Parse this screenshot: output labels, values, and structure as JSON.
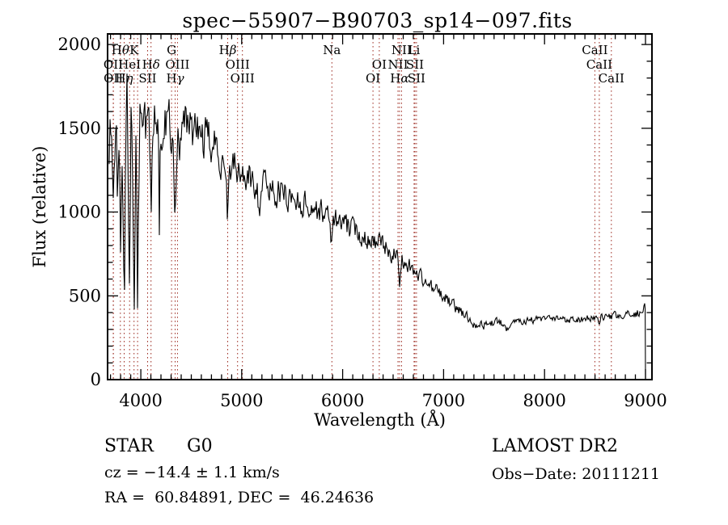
{
  "title": "spec−55907−B90703_sp14−097.fits",
  "chart_data": {
    "type": "line",
    "title": "spec−55907−B90703_sp14−097.fits",
    "xlabel": "Wavelength (Å)",
    "ylabel": "Flux (relative)",
    "xlim": [
      3671,
      9064
    ],
    "ylim": [
      0,
      2063
    ],
    "x_major_ticks": [
      4000,
      5000,
      6000,
      7000,
      8000,
      9000
    ],
    "x_minor_step": 100,
    "y_major_ticks": [
      0,
      500,
      1000,
      1500,
      2000
    ],
    "y_minor_step": 100,
    "grid": false,
    "line_color": "#000000",
    "marker_line_color": "#a03228",
    "wavelength_range": [
      3687,
      9000
    ],
    "noise_seed": 1337,
    "continuum_points": [
      [
        3690,
        1450
      ],
      [
        3760,
        1520
      ],
      [
        3830,
        1600
      ],
      [
        3900,
        1690
      ],
      [
        3950,
        1640
      ],
      [
        4000,
        1560
      ],
      [
        4100,
        1520
      ],
      [
        4250,
        1545
      ],
      [
        4400,
        1515
      ],
      [
        4550,
        1475
      ],
      [
        4700,
        1405
      ],
      [
        4850,
        1305
      ],
      [
        5000,
        1215
      ],
      [
        5200,
        1165
      ],
      [
        5400,
        1115
      ],
      [
        5600,
        1055
      ],
      [
        5800,
        995
      ],
      [
        6000,
        925
      ],
      [
        6200,
        865
      ],
      [
        6300,
        835
      ],
      [
        6450,
        775
      ],
      [
        6600,
        715
      ],
      [
        6700,
        655
      ],
      [
        6800,
        595
      ],
      [
        6900,
        540
      ],
      [
        7000,
        495
      ],
      [
        7100,
        440
      ],
      [
        7200,
        390
      ],
      [
        7300,
        340
      ],
      [
        7400,
        325
      ],
      [
        7500,
        342
      ],
      [
        7650,
        352
      ],
      [
        7800,
        356
      ],
      [
        8000,
        358
      ],
      [
        8300,
        362
      ],
      [
        8600,
        370
      ],
      [
        8800,
        378
      ],
      [
        8920,
        395
      ],
      [
        8970,
        432
      ],
      [
        9000,
        425
      ]
    ],
    "noise_amplitude_points": [
      [
        3690,
        260
      ],
      [
        3860,
        290
      ],
      [
        3960,
        240
      ],
      [
        4100,
        165
      ],
      [
        4300,
        145
      ],
      [
        4600,
        120
      ],
      [
        5000,
        95
      ],
      [
        5400,
        82
      ],
      [
        5800,
        70
      ],
      [
        6100,
        62
      ],
      [
        6400,
        55
      ],
      [
        6700,
        46
      ],
      [
        7000,
        38
      ],
      [
        7200,
        28
      ],
      [
        7500,
        22
      ],
      [
        8000,
        20
      ],
      [
        8500,
        21
      ],
      [
        9000,
        26
      ]
    ],
    "absorption_lines": [
      [
        3727,
        500,
        7
      ],
      [
        3770,
        330,
        6
      ],
      [
        3798,
        640,
        7
      ],
      [
        3835,
        880,
        7
      ],
      [
        3889,
        980,
        8
      ],
      [
        3933,
        1090,
        9
      ],
      [
        3969,
        1000,
        9
      ],
      [
        4101,
        500,
        9
      ],
      [
        4340,
        420,
        9
      ],
      [
        4383,
        160,
        6
      ],
      [
        4861,
        300,
        9
      ],
      [
        5172,
        110,
        12
      ],
      [
        5893,
        140,
        9
      ],
      [
        6563,
        230,
        8
      ],
      [
        7615,
        55,
        24
      ],
      [
        8542,
        55,
        8
      ]
    ],
    "spectral_line_markers": [
      3727,
      3729,
      3798,
      3835,
      3889,
      3933,
      3968,
      4068,
      4101,
      4305,
      4340,
      4363,
      4861,
      4959,
      5007,
      5893,
      6300,
      6363,
      6548,
      6563,
      6583,
      6707,
      6716,
      6731,
      8498,
      8542,
      8662
    ],
    "spectral_line_labels": [
      {
        "row": 1,
        "text": "Hθ",
        "wavelength": 3798
      },
      {
        "row": 1,
        "text": "K",
        "wavelength": 3933
      },
      {
        "row": 1,
        "text": "G",
        "wavelength": 4305
      },
      {
        "row": 1,
        "text": "Hβ",
        "wavelength": 4861
      },
      {
        "row": 1,
        "text": "Na",
        "wavelength": 5893
      },
      {
        "row": 1,
        "text": "NII",
        "wavelength": 6583
      },
      {
        "row": 1,
        "text": "Li",
        "wavelength": 6707
      },
      {
        "row": 1,
        "text": "CaII",
        "wavelength": 8498
      },
      {
        "row": 2,
        "text": "OII",
        "wavelength": 3727
      },
      {
        "row": 2,
        "text": "HeI",
        "wavelength": 3889
      },
      {
        "row": 2,
        "text": "Hδ",
        "wavelength": 4101
      },
      {
        "row": 2,
        "text": "OIII",
        "wavelength": 4363
      },
      {
        "row": 2,
        "text": "OIII",
        "wavelength": 4959
      },
      {
        "row": 2,
        "text": "OI",
        "wavelength": 6363
      },
      {
        "row": 2,
        "text": "NII",
        "wavelength": 6548
      },
      {
        "row": 2,
        "text": "SII",
        "wavelength": 6716
      },
      {
        "row": 2,
        "text": "CaII",
        "wavelength": 8542
      },
      {
        "row": 3,
        "text": "OII",
        "wavelength": 3729
      },
      {
        "row": 3,
        "text": "Hη",
        "wavelength": 3835
      },
      {
        "row": 3,
        "text": "SII",
        "wavelength": 4068
      },
      {
        "row": 3,
        "text": "Hγ",
        "wavelength": 4340
      },
      {
        "row": 3,
        "text": "OIII",
        "wavelength": 5007
      },
      {
        "row": 3,
        "text": "OI",
        "wavelength": 6300
      },
      {
        "row": 3,
        "text": "Hα",
        "wavelength": 6563
      },
      {
        "row": 3,
        "text": "SII",
        "wavelength": 6731
      },
      {
        "row": 3,
        "text": "CaII",
        "wavelength": 8662
      }
    ]
  },
  "annotations": {
    "class_label": "STAR",
    "subclass_label": "G0",
    "cz_line": "cz = −14.4 ± 1.1 km/s",
    "radec_line": "RA =  60.84891, DEC =  46.24636",
    "survey": "LAMOST DR2",
    "obs_date_line": "Obs−Date: 20111211"
  }
}
